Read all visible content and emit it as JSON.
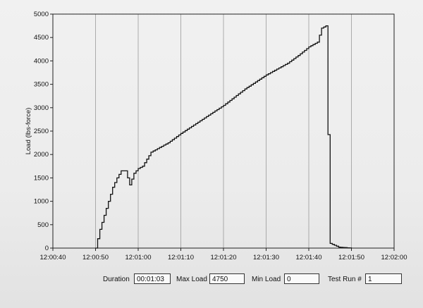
{
  "chart_data": {
    "type": "line",
    "title": "",
    "ylabel": "Load (lbs-force)",
    "xlabel": "",
    "ylim": [
      0,
      5000
    ],
    "xlim": [
      "12:00:40",
      "12:02:00"
    ],
    "yticks": [
      0,
      500,
      1000,
      1500,
      2000,
      2500,
      3000,
      3500,
      4000,
      4500,
      5000
    ],
    "xticks": [
      "12:00:40",
      "12:00:50",
      "12:01:00",
      "12:01:10",
      "12:01:20",
      "12:01:30",
      "12:01:40",
      "12:01:50",
      "12:02:00"
    ],
    "grid": "vertical",
    "series": [
      {
        "x": [
          "12:00:50",
          "12:00:51",
          "12:00:52",
          "12:00:53",
          "12:00:54",
          "12:00:55",
          "12:00:56",
          "12:00:57",
          "12:00:58",
          "12:00:59",
          "12:01:00",
          "12:01:01",
          "12:01:02",
          "12:01:03",
          "12:01:05",
          "12:01:07",
          "12:01:10",
          "12:01:15",
          "12:01:20",
          "12:01:25",
          "12:01:30",
          "12:01:35",
          "12:01:38",
          "12:01:40",
          "12:01:41",
          "12:01:42",
          "12:01:43",
          "12:01:44",
          "12:01:45",
          "12:01:47",
          "12:01:50"
        ],
        "y": [
          0,
          400,
          700,
          1000,
          1300,
          1500,
          1650,
          1650,
          1350,
          1600,
          1700,
          1750,
          1900,
          2050,
          2150,
          2250,
          2450,
          2750,
          3050,
          3400,
          3700,
          3950,
          4150,
          4300,
          4350,
          4400,
          4700,
          4750,
          100,
          20,
          0
        ]
      }
    ]
  },
  "footer": {
    "duration_label": "Duration",
    "duration_value": "00:01:03",
    "max_load_label": "Max Load",
    "max_load_value": "4750",
    "min_load_label": "Min Load",
    "min_load_value": "0",
    "test_run_label": "Test Run #",
    "test_run_value": "1"
  }
}
